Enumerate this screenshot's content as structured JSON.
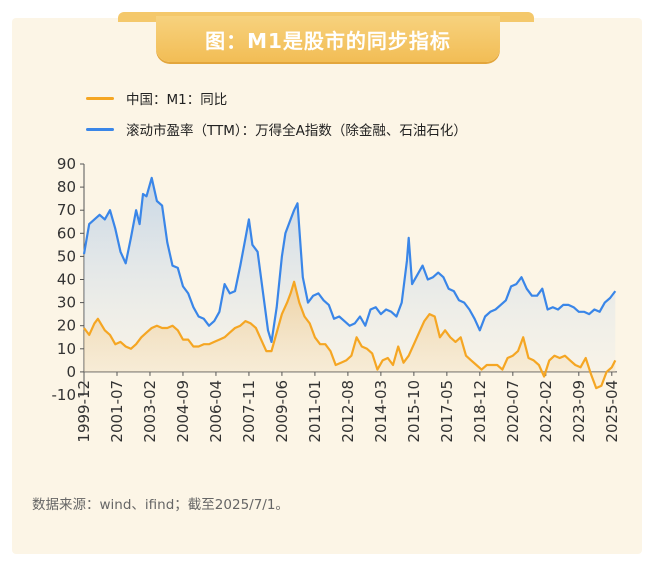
{
  "title": "图：M1是股市的同步指标",
  "source": "数据来源：wind、ifind；截至2025/7/1。",
  "colors": {
    "m1": "#f5a623",
    "pe": "#3a86e8",
    "background": "#fcf5e6",
    "accent": "#f2bd55"
  },
  "chart_data": {
    "type": "line",
    "title": "",
    "xlabel": "",
    "ylabel": "",
    "ylim": [
      -10,
      90
    ],
    "yticks": [
      -10,
      0,
      10,
      20,
      30,
      40,
      50,
      60,
      70,
      80,
      90
    ],
    "xlim": [
      "1999-12",
      "2025-07"
    ],
    "xtick_labels": [
      "1999-12",
      "2001-07",
      "2003-02",
      "2004-09",
      "2006-04",
      "2007-11",
      "2009-06",
      "2011-01",
      "2012-08",
      "2014-03",
      "2015-10",
      "2017-05",
      "2018-12",
      "2020-07",
      "2022-02",
      "2023-09",
      "2025-04"
    ],
    "legend_position": "top-left",
    "grid": false,
    "series": [
      {
        "name": "中国：M1：同比",
        "color": "#f5a623",
        "area": true,
        "points": [
          [
            "1999-12",
            19
          ],
          [
            "2000-03",
            16
          ],
          [
            "2000-06",
            21
          ],
          [
            "2000-08",
            23
          ],
          [
            "2000-12",
            18
          ],
          [
            "2001-03",
            16
          ],
          [
            "2001-06",
            12
          ],
          [
            "2001-09",
            13
          ],
          [
            "2001-12",
            11
          ],
          [
            "2002-03",
            10
          ],
          [
            "2002-06",
            12
          ],
          [
            "2002-09",
            15
          ],
          [
            "2002-12",
            17
          ],
          [
            "2003-03",
            19
          ],
          [
            "2003-06",
            20
          ],
          [
            "2003-09",
            19
          ],
          [
            "2003-12",
            19
          ],
          [
            "2004-03",
            20
          ],
          [
            "2004-06",
            18
          ],
          [
            "2004-09",
            14
          ],
          [
            "2004-12",
            14
          ],
          [
            "2005-03",
            11
          ],
          [
            "2005-06",
            11
          ],
          [
            "2005-09",
            12
          ],
          [
            "2005-12",
            12
          ],
          [
            "2006-03",
            13
          ],
          [
            "2006-06",
            14
          ],
          [
            "2006-09",
            15
          ],
          [
            "2006-12",
            17
          ],
          [
            "2007-03",
            19
          ],
          [
            "2007-06",
            20
          ],
          [
            "2007-09",
            22
          ],
          [
            "2007-12",
            21
          ],
          [
            "2008-03",
            19
          ],
          [
            "2008-06",
            14
          ],
          [
            "2008-09",
            9
          ],
          [
            "2008-12",
            9
          ],
          [
            "2009-03",
            17
          ],
          [
            "2009-06",
            25
          ],
          [
            "2009-09",
            30
          ],
          [
            "2009-11",
            34
          ],
          [
            "2010-01",
            39
          ],
          [
            "2010-04",
            30
          ],
          [
            "2010-07",
            24
          ],
          [
            "2010-10",
            21
          ],
          [
            "2011-01",
            15
          ],
          [
            "2011-04",
            12
          ],
          [
            "2011-07",
            12
          ],
          [
            "2011-10",
            9
          ],
          [
            "2012-01",
            3
          ],
          [
            "2012-04",
            4
          ],
          [
            "2012-07",
            5
          ],
          [
            "2012-10",
            7
          ],
          [
            "2013-01",
            15
          ],
          [
            "2013-04",
            11
          ],
          [
            "2013-07",
            10
          ],
          [
            "2013-10",
            8
          ],
          [
            "2014-01",
            1
          ],
          [
            "2014-04",
            5
          ],
          [
            "2014-07",
            6
          ],
          [
            "2014-10",
            3
          ],
          [
            "2015-01",
            11
          ],
          [
            "2015-04",
            4
          ],
          [
            "2015-07",
            7
          ],
          [
            "2015-10",
            12
          ],
          [
            "2016-01",
            17
          ],
          [
            "2016-04",
            22
          ],
          [
            "2016-07",
            25
          ],
          [
            "2016-10",
            24
          ],
          [
            "2017-01",
            15
          ],
          [
            "2017-04",
            18
          ],
          [
            "2017-07",
            15
          ],
          [
            "2017-10",
            13
          ],
          [
            "2018-01",
            15
          ],
          [
            "2018-04",
            7
          ],
          [
            "2018-07",
            5
          ],
          [
            "2018-10",
            3
          ],
          [
            "2019-01",
            1
          ],
          [
            "2019-04",
            3
          ],
          [
            "2019-07",
            3
          ],
          [
            "2019-10",
            3
          ],
          [
            "2020-01",
            1
          ],
          [
            "2020-04",
            6
          ],
          [
            "2020-07",
            7
          ],
          [
            "2020-10",
            9
          ],
          [
            "2021-01",
            15
          ],
          [
            "2021-04",
            6
          ],
          [
            "2021-07",
            5
          ],
          [
            "2021-10",
            3
          ],
          [
            "2022-01",
            -2
          ],
          [
            "2022-04",
            5
          ],
          [
            "2022-07",
            7
          ],
          [
            "2022-10",
            6
          ],
          [
            "2023-01",
            7
          ],
          [
            "2023-04",
            5
          ],
          [
            "2023-07",
            3
          ],
          [
            "2023-10",
            2
          ],
          [
            "2024-01",
            6
          ],
          [
            "2024-04",
            -1
          ],
          [
            "2024-07",
            -7
          ],
          [
            "2024-10",
            -6
          ],
          [
            "2025-01",
            0
          ],
          [
            "2025-04",
            2
          ],
          [
            "2025-06",
            5
          ]
        ]
      },
      {
        "name": "滚动市盈率（TTM）：万得全A指数（除金融、石油石化）",
        "color": "#3a86e8",
        "area": true,
        "points": [
          [
            "1999-12",
            51
          ],
          [
            "2000-03",
            64
          ],
          [
            "2000-06",
            66
          ],
          [
            "2000-09",
            68
          ],
          [
            "2000-12",
            66
          ],
          [
            "2001-03",
            70
          ],
          [
            "2001-06",
            62
          ],
          [
            "2001-09",
            52
          ],
          [
            "2001-12",
            47
          ],
          [
            "2002-03",
            58
          ],
          [
            "2002-06",
            70
          ],
          [
            "2002-08",
            64
          ],
          [
            "2002-10",
            77
          ],
          [
            "2002-12",
            76
          ],
          [
            "2003-03",
            84
          ],
          [
            "2003-06",
            74
          ],
          [
            "2003-09",
            72
          ],
          [
            "2003-12",
            56
          ],
          [
            "2004-03",
            46
          ],
          [
            "2004-06",
            45
          ],
          [
            "2004-09",
            37
          ],
          [
            "2004-12",
            34
          ],
          [
            "2005-03",
            28
          ],
          [
            "2005-06",
            24
          ],
          [
            "2005-09",
            23
          ],
          [
            "2005-12",
            20
          ],
          [
            "2006-03",
            22
          ],
          [
            "2006-06",
            26
          ],
          [
            "2006-09",
            38
          ],
          [
            "2006-12",
            34
          ],
          [
            "2007-03",
            35
          ],
          [
            "2007-06",
            46
          ],
          [
            "2007-09",
            58
          ],
          [
            "2007-11",
            66
          ],
          [
            "2008-01",
            55
          ],
          [
            "2008-04",
            52
          ],
          [
            "2008-07",
            35
          ],
          [
            "2008-10",
            18
          ],
          [
            "2008-12",
            13
          ],
          [
            "2009-03",
            28
          ],
          [
            "2009-06",
            50
          ],
          [
            "2009-08",
            60
          ],
          [
            "2009-11",
            66
          ],
          [
            "2010-01",
            70
          ],
          [
            "2010-03",
            73
          ],
          [
            "2010-06",
            41
          ],
          [
            "2010-09",
            30
          ],
          [
            "2010-12",
            33
          ],
          [
            "2011-03",
            34
          ],
          [
            "2011-06",
            31
          ],
          [
            "2011-09",
            29
          ],
          [
            "2011-12",
            23
          ],
          [
            "2012-03",
            24
          ],
          [
            "2012-06",
            22
          ],
          [
            "2012-09",
            20
          ],
          [
            "2012-12",
            21
          ],
          [
            "2013-03",
            24
          ],
          [
            "2013-06",
            20
          ],
          [
            "2013-09",
            27
          ],
          [
            "2013-12",
            28
          ],
          [
            "2014-03",
            25
          ],
          [
            "2014-06",
            27
          ],
          [
            "2014-09",
            26
          ],
          [
            "2014-12",
            24
          ],
          [
            "2015-03",
            30
          ],
          [
            "2015-06",
            48
          ],
          [
            "2015-07",
            58
          ],
          [
            "2015-09",
            38
          ],
          [
            "2015-12",
            42
          ],
          [
            "2016-03",
            46
          ],
          [
            "2016-06",
            40
          ],
          [
            "2016-09",
            41
          ],
          [
            "2016-12",
            43
          ],
          [
            "2017-03",
            41
          ],
          [
            "2017-06",
            36
          ],
          [
            "2017-09",
            35
          ],
          [
            "2017-12",
            31
          ],
          [
            "2018-03",
            30
          ],
          [
            "2018-06",
            27
          ],
          [
            "2018-09",
            23
          ],
          [
            "2018-12",
            18
          ],
          [
            "2019-03",
            24
          ],
          [
            "2019-06",
            26
          ],
          [
            "2019-09",
            27
          ],
          [
            "2019-12",
            29
          ],
          [
            "2020-03",
            31
          ],
          [
            "2020-06",
            37
          ],
          [
            "2020-09",
            38
          ],
          [
            "2020-12",
            41
          ],
          [
            "2021-03",
            36
          ],
          [
            "2021-06",
            33
          ],
          [
            "2021-09",
            33
          ],
          [
            "2021-12",
            36
          ],
          [
            "2022-03",
            27
          ],
          [
            "2022-06",
            28
          ],
          [
            "2022-09",
            27
          ],
          [
            "2022-12",
            29
          ],
          [
            "2023-03",
            29
          ],
          [
            "2023-06",
            28
          ],
          [
            "2023-09",
            26
          ],
          [
            "2023-12",
            26
          ],
          [
            "2024-03",
            25
          ],
          [
            "2024-06",
            27
          ],
          [
            "2024-09",
            26
          ],
          [
            "2024-12",
            30
          ],
          [
            "2025-03",
            32
          ],
          [
            "2025-06",
            35
          ]
        ]
      }
    ]
  }
}
